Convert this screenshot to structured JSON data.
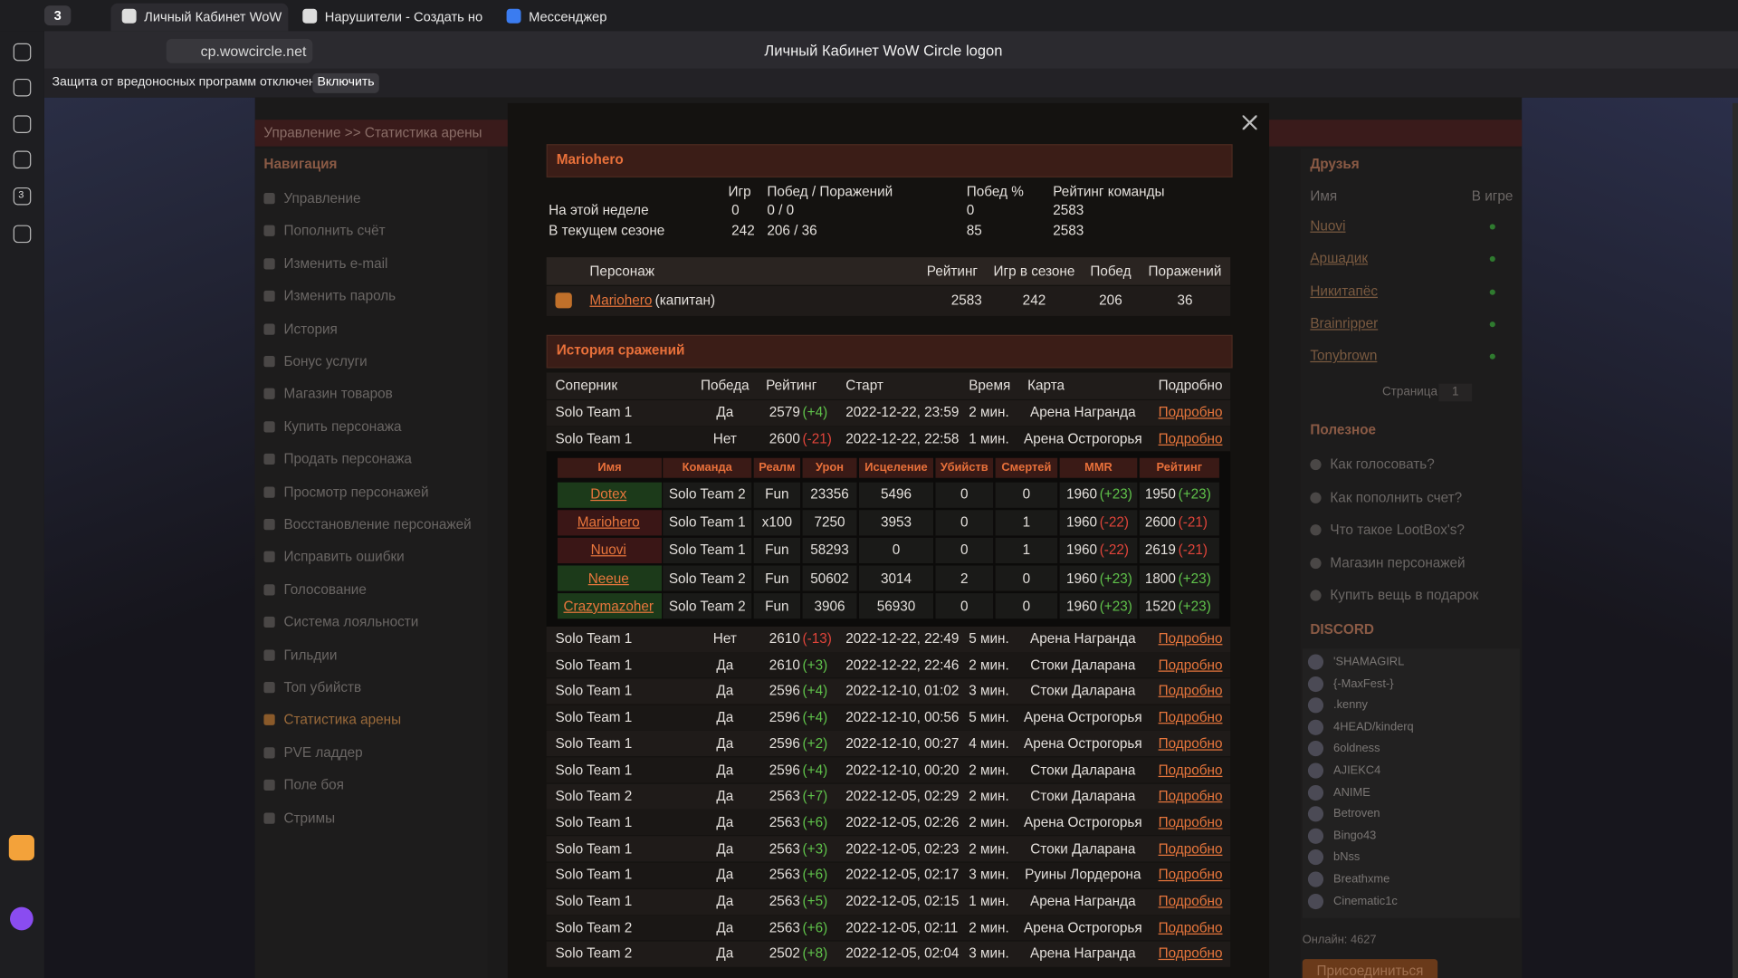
{
  "browser": {
    "tab_count": "3",
    "tabs": [
      "Личный Кабинет WoW",
      "Нарушители - Создать но",
      "Мессенджер"
    ],
    "address": "cp.wowcircle.net",
    "page_title": "Личный Кабинет WoW Circle logon",
    "notice": "Защита от вредоносных программ отключена",
    "notice_button": "Включить",
    "sidebar_badge": "3"
  },
  "site": {
    "breadcrumb": "Управление >> Статистика арены",
    "nav_title": "Навигация",
    "nav": [
      "Управление",
      "Пополнить счёт",
      "Изменить e-mail",
      "Изменить пароль",
      "История",
      "Бонус услуги",
      "Магазин товаров",
      "Купить персонажа",
      "Продать персонажа",
      "Просмотр персонажей",
      "Восстановление персонажей",
      "Исправить ошибки",
      "Голосование",
      "Система лояльности",
      "Гильдии",
      "Топ убийств",
      "Статистика арены",
      "PVE ладдер",
      "Поле боя",
      "Стримы"
    ]
  },
  "friends": {
    "title": "Друзья",
    "name_header": "Имя",
    "status_header": "В игре",
    "names": [
      "Nuovi",
      "Аршадик",
      "Никитапёс",
      "Brainripper",
      "Tonybrown"
    ],
    "page_label": "Страница",
    "page": "1"
  },
  "useful": {
    "title": "Полезное",
    "items": [
      "Как голосовать?",
      "Как пополнить счет?",
      "Что такое LootBox's?",
      "Магазин персонажей",
      "Купить вещь в подарок"
    ]
  },
  "discord": {
    "title": "DISCORD",
    "members": [
      "'SHAMAGIRL",
      "{-MaxFest-}",
      ".kenny",
      "4HEAD/kinderq",
      "6oldness",
      "AJIEKC4",
      "ANIME",
      "Betroven",
      "Bingo43",
      "bNss",
      "Breathxme",
      "Cinematic1c"
    ],
    "online": "Онлайн: 4627",
    "join": "Присоединиться"
  },
  "team": {
    "title": "Mariohero",
    "headers": [
      "Игр",
      "Побед / Поражений",
      "Побед %",
      "Рейтинг команды"
    ],
    "rows": [
      [
        "На этой неделе",
        "0",
        "0 / 0",
        "0",
        "2583"
      ],
      [
        "В текущем сезоне",
        "242",
        "206 / 36",
        "85",
        "2583"
      ]
    ]
  },
  "roster": {
    "headers": [
      "Персонаж",
      "Рейтинг",
      "Игр в сезоне",
      "Побед",
      "Поражений"
    ],
    "rows": [
      [
        "Mariohero",
        "(капитан)",
        "2583",
        "242",
        "206",
        "36"
      ]
    ]
  },
  "history": {
    "title": "История сражений",
    "headers": [
      "Соперник",
      "Победа",
      "Рейтинг",
      "Старт",
      "Время",
      "Карта",
      "Подробно"
    ],
    "rows": [
      [
        "Solo Team 1",
        "Да",
        "2579",
        "(+4)",
        "2022-12-22, 23:59",
        "2 мин.",
        "Арена Награнда",
        "Подробно"
      ],
      [
        "Solo Team 1",
        "Нет",
        "2600",
        "(-21)",
        "2022-12-22, 22:58",
        "1 мин.",
        "Арена Острогорья",
        "Подробно"
      ],
      [
        "Solo Team 1",
        "Нет",
        "2610",
        "(-13)",
        "2022-12-22, 22:49",
        "5 мин.",
        "Арена Награнда",
        "Подробно"
      ],
      [
        "Solo Team 1",
        "Да",
        "2610",
        "(+3)",
        "2022-12-22, 22:46",
        "2 мин.",
        "Стоки Даларана",
        "Подробно"
      ],
      [
        "Solo Team 1",
        "Да",
        "2596",
        "(+4)",
        "2022-12-10, 01:02",
        "3 мин.",
        "Стоки Даларана",
        "Подробно"
      ],
      [
        "Solo Team 1",
        "Да",
        "2596",
        "(+4)",
        "2022-12-10, 00:56",
        "5 мин.",
        "Арена Острогорья",
        "Подробно"
      ],
      [
        "Solo Team 1",
        "Да",
        "2596",
        "(+2)",
        "2022-12-10, 00:27",
        "4 мин.",
        "Арена Острогорья",
        "Подробно"
      ],
      [
        "Solo Team 1",
        "Да",
        "2596",
        "(+4)",
        "2022-12-10, 00:20",
        "2 мин.",
        "Стоки Даларана",
        "Подробно"
      ],
      [
        "Solo Team 2",
        "Да",
        "2563",
        "(+7)",
        "2022-12-05, 02:29",
        "2 мин.",
        "Стоки Даларана",
        "Подробно"
      ],
      [
        "Solo Team 1",
        "Да",
        "2563",
        "(+6)",
        "2022-12-05, 02:26",
        "2 мин.",
        "Арена Острогорья",
        "Подробно"
      ],
      [
        "Solo Team 1",
        "Да",
        "2563",
        "(+3)",
        "2022-12-05, 02:23",
        "2 мин.",
        "Стоки Даларана",
        "Подробно"
      ],
      [
        "Solo Team 1",
        "Да",
        "2563",
        "(+6)",
        "2022-12-05, 02:17",
        "3 мин.",
        "Руины Лордерона",
        "Подробно"
      ],
      [
        "Solo Team 1",
        "Да",
        "2563",
        "(+5)",
        "2022-12-05, 02:15",
        "1 мин.",
        "Арена Награнда",
        "Подробно"
      ],
      [
        "Solo Team 2",
        "Да",
        "2563",
        "(+6)",
        "2022-12-05, 02:11",
        "2 мин.",
        "Арена Острогорья",
        "Подробно"
      ],
      [
        "Solo Team 2",
        "Да",
        "2502",
        "(+8)",
        "2022-12-05, 02:04",
        "3 мин.",
        "Арена Награнда",
        "Подробно"
      ]
    ],
    "details": {
      "headers": [
        "Имя",
        "Команда",
        "Реалм",
        "Урон",
        "Исцеление",
        "Убийств",
        "Смертей",
        "MMR",
        "Рейтинг"
      ],
      "rows": [
        [
          "Dotex",
          "Solo Team 2",
          "Fun",
          "23356",
          "5496",
          "0",
          "0",
          "1960",
          "(+23)",
          "1950",
          "(+23)"
        ],
        [
          "Mariohero",
          "Solo Team 1",
          "x100",
          "7250",
          "3953",
          "0",
          "1",
          "1960",
          "(-22)",
          "2600",
          "(-21)"
        ],
        [
          "Nuovi",
          "Solo Team 1",
          "Fun",
          "58293",
          "0",
          "0",
          "1",
          "1960",
          "(-22)",
          "2619",
          "(-21)"
        ],
        [
          "Neeue",
          "Solo Team 2",
          "Fun",
          "50602",
          "3014",
          "2",
          "0",
          "1960",
          "(+23)",
          "1800",
          "(+23)"
        ],
        [
          "Crazymazoher",
          "Solo Team 2",
          "Fun",
          "3906",
          "56930",
          "0",
          "0",
          "1960",
          "(+23)",
          "1520",
          "(+23)"
        ]
      ]
    }
  }
}
